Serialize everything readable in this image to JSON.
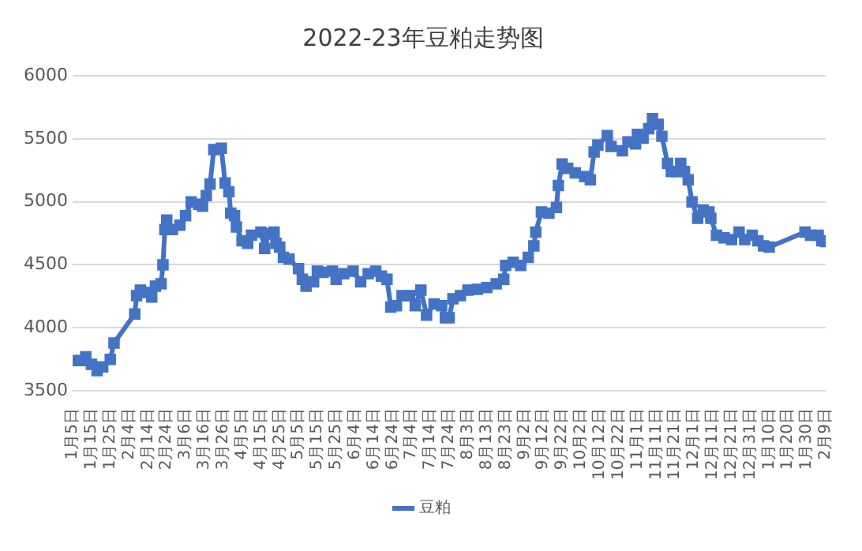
{
  "chart_data": {
    "type": "line",
    "title": "2022-23年豆粕走势图",
    "x": [
      "2022-01-05",
      "2022-01-10",
      "2022-01-12",
      "2022-01-15",
      "2022-01-18",
      "2022-01-21",
      "2022-01-25",
      "2022-01-27",
      "2022-02-07",
      "2022-02-08",
      "2022-02-10",
      "2022-02-14",
      "2022-02-16",
      "2022-02-18",
      "2022-02-21",
      "2022-02-22",
      "2022-02-23",
      "2022-02-24",
      "2022-02-27",
      "2022-03-03",
      "2022-03-06",
      "2022-03-09",
      "2022-03-13",
      "2022-03-15",
      "2022-03-17",
      "2022-03-19",
      "2022-03-21",
      "2022-03-25",
      "2022-03-27",
      "2022-03-29",
      "2022-03-30",
      "2022-04-01",
      "2022-04-02",
      "2022-04-05",
      "2022-04-08",
      "2022-04-10",
      "2022-04-15",
      "2022-04-17",
      "2022-04-19",
      "2022-04-22",
      "2022-04-23",
      "2022-04-25",
      "2022-04-27",
      "2022-04-30",
      "2022-05-05",
      "2022-05-07",
      "2022-05-09",
      "2022-05-13",
      "2022-05-15",
      "2022-05-18",
      "2022-05-23",
      "2022-05-25",
      "2022-05-29",
      "2022-06-03",
      "2022-06-07",
      "2022-06-11",
      "2022-06-15",
      "2022-06-18",
      "2022-06-21",
      "2022-06-23",
      "2022-06-26",
      "2022-06-29",
      "2022-07-03",
      "2022-07-06",
      "2022-07-09",
      "2022-07-12",
      "2022-07-16",
      "2022-07-20",
      "2022-07-22",
      "2022-07-24",
      "2022-07-26",
      "2022-07-30",
      "2022-08-03",
      "2022-08-08",
      "2022-08-13",
      "2022-08-18",
      "2022-08-22",
      "2022-08-23",
      "2022-08-27",
      "2022-08-31",
      "2022-09-04",
      "2022-09-07",
      "2022-09-08",
      "2022-09-11",
      "2022-09-15",
      "2022-09-19",
      "2022-09-20",
      "2022-09-22",
      "2022-09-25",
      "2022-09-29",
      "2022-10-04",
      "2022-10-07",
      "2022-10-09",
      "2022-10-11",
      "2022-10-16",
      "2022-10-18",
      "2022-10-24",
      "2022-10-27",
      "2022-10-31",
      "2022-11-01",
      "2022-11-04",
      "2022-11-07",
      "2022-11-09",
      "2022-11-12",
      "2022-11-14",
      "2022-11-17",
      "2022-11-19",
      "2022-11-22",
      "2022-11-24",
      "2022-11-26",
      "2022-11-28",
      "2022-11-30",
      "2022-12-03",
      "2022-12-06",
      "2022-12-09",
      "2022-12-10",
      "2022-12-13",
      "2022-12-17",
      "2022-12-21",
      "2022-12-25",
      "2022-12-28",
      "2023-01-01",
      "2023-01-04",
      "2023-01-07",
      "2023-01-10",
      "2023-01-29",
      "2023-02-01",
      "2023-02-05",
      "2023-02-07",
      "2023-02-09"
    ],
    "series": [
      {
        "name": "豆粕",
        "color": "#4472c4",
        "values": [
          3740,
          3740,
          3770,
          3710,
          3660,
          3690,
          3750,
          3880,
          4110,
          4255,
          4300,
          4280,
          4245,
          4330,
          4350,
          4500,
          4780,
          4855,
          4780,
          4815,
          4890,
          5000,
          4980,
          4965,
          5050,
          5140,
          5415,
          5425,
          5150,
          5080,
          4910,
          4890,
          4800,
          4690,
          4670,
          4735,
          4760,
          4630,
          4745,
          4760,
          4670,
          4640,
          4560,
          4545,
          4470,
          4385,
          4330,
          4365,
          4450,
          4440,
          4450,
          4385,
          4430,
          4450,
          4365,
          4430,
          4450,
          4410,
          4385,
          4165,
          4175,
          4255,
          4255,
          4175,
          4300,
          4100,
          4190,
          4175,
          4080,
          4080,
          4230,
          4255,
          4300,
          4305,
          4320,
          4350,
          4385,
          4495,
          4520,
          4495,
          4560,
          4650,
          4760,
          4920,
          4910,
          4955,
          5130,
          5300,
          5265,
          5230,
          5200,
          5175,
          5395,
          5450,
          5525,
          5440,
          5405,
          5475,
          5460,
          5535,
          5505,
          5580,
          5660,
          5615,
          5520,
          5305,
          5240,
          5240,
          5305,
          5240,
          5175,
          5000,
          4870,
          4935,
          4920,
          4870,
          4735,
          4715,
          4700,
          4760,
          4700,
          4735,
          4690,
          4650,
          4640,
          4760,
          4735,
          4735,
          4690,
          4685
        ]
      }
    ],
    "xlim": [
      "2022-01-05",
      "2023-02-09"
    ],
    "xticks": [
      {
        "value": "2022-01-05",
        "label": "1月5日"
      },
      {
        "value": "2022-01-15",
        "label": "1月15日"
      },
      {
        "value": "2022-01-25",
        "label": "1月25日"
      },
      {
        "value": "2022-02-04",
        "label": "2月4日"
      },
      {
        "value": "2022-02-14",
        "label": "2月14日"
      },
      {
        "value": "2022-02-24",
        "label": "2月24日"
      },
      {
        "value": "2022-03-06",
        "label": "3月6日"
      },
      {
        "value": "2022-03-16",
        "label": "3月16日"
      },
      {
        "value": "2022-03-26",
        "label": "3月26日"
      },
      {
        "value": "2022-04-05",
        "label": "4月5日"
      },
      {
        "value": "2022-04-15",
        "label": "4月15日"
      },
      {
        "value": "2022-04-25",
        "label": "4月25日"
      },
      {
        "value": "2022-05-05",
        "label": "5月5日"
      },
      {
        "value": "2022-05-15",
        "label": "5月15日"
      },
      {
        "value": "2022-05-25",
        "label": "5月25日"
      },
      {
        "value": "2022-06-04",
        "label": "6月4日"
      },
      {
        "value": "2022-06-14",
        "label": "6月14日"
      },
      {
        "value": "2022-06-24",
        "label": "6月24日"
      },
      {
        "value": "2022-07-04",
        "label": "7月4日"
      },
      {
        "value": "2022-07-14",
        "label": "7月14日"
      },
      {
        "value": "2022-07-24",
        "label": "7月24日"
      },
      {
        "value": "2022-08-03",
        "label": "8月3日"
      },
      {
        "value": "2022-08-13",
        "label": "8月13日"
      },
      {
        "value": "2022-08-23",
        "label": "8月23日"
      },
      {
        "value": "2022-09-02",
        "label": "9月2日"
      },
      {
        "value": "2022-09-12",
        "label": "9月12日"
      },
      {
        "value": "2022-09-22",
        "label": "9月22日"
      },
      {
        "value": "2022-10-02",
        "label": "10月2日"
      },
      {
        "value": "2022-10-12",
        "label": "10月12日"
      },
      {
        "value": "2022-10-22",
        "label": "10月22日"
      },
      {
        "value": "2022-11-01",
        "label": "11月1日"
      },
      {
        "value": "2022-11-11",
        "label": "11月11日"
      },
      {
        "value": "2022-11-21",
        "label": "11月21日"
      },
      {
        "value": "2022-12-01",
        "label": "12月1日"
      },
      {
        "value": "2022-12-11",
        "label": "12月11日"
      },
      {
        "value": "2022-12-21",
        "label": "12月21日"
      },
      {
        "value": "2022-12-31",
        "label": "12月31日"
      },
      {
        "value": "2023-01-10",
        "label": "1月10日"
      },
      {
        "value": "2023-01-20",
        "label": "1月20日"
      },
      {
        "value": "2023-01-30",
        "label": "1月30日"
      },
      {
        "value": "2023-02-09",
        "label": "2月9日"
      }
    ],
    "ylim": [
      3500,
      6000
    ],
    "yticks": [
      3500,
      4000,
      4500,
      5000,
      5500,
      6000
    ],
    "grid": "y",
    "legend": "bottom",
    "marker": "square",
    "line_style": "solid"
  }
}
